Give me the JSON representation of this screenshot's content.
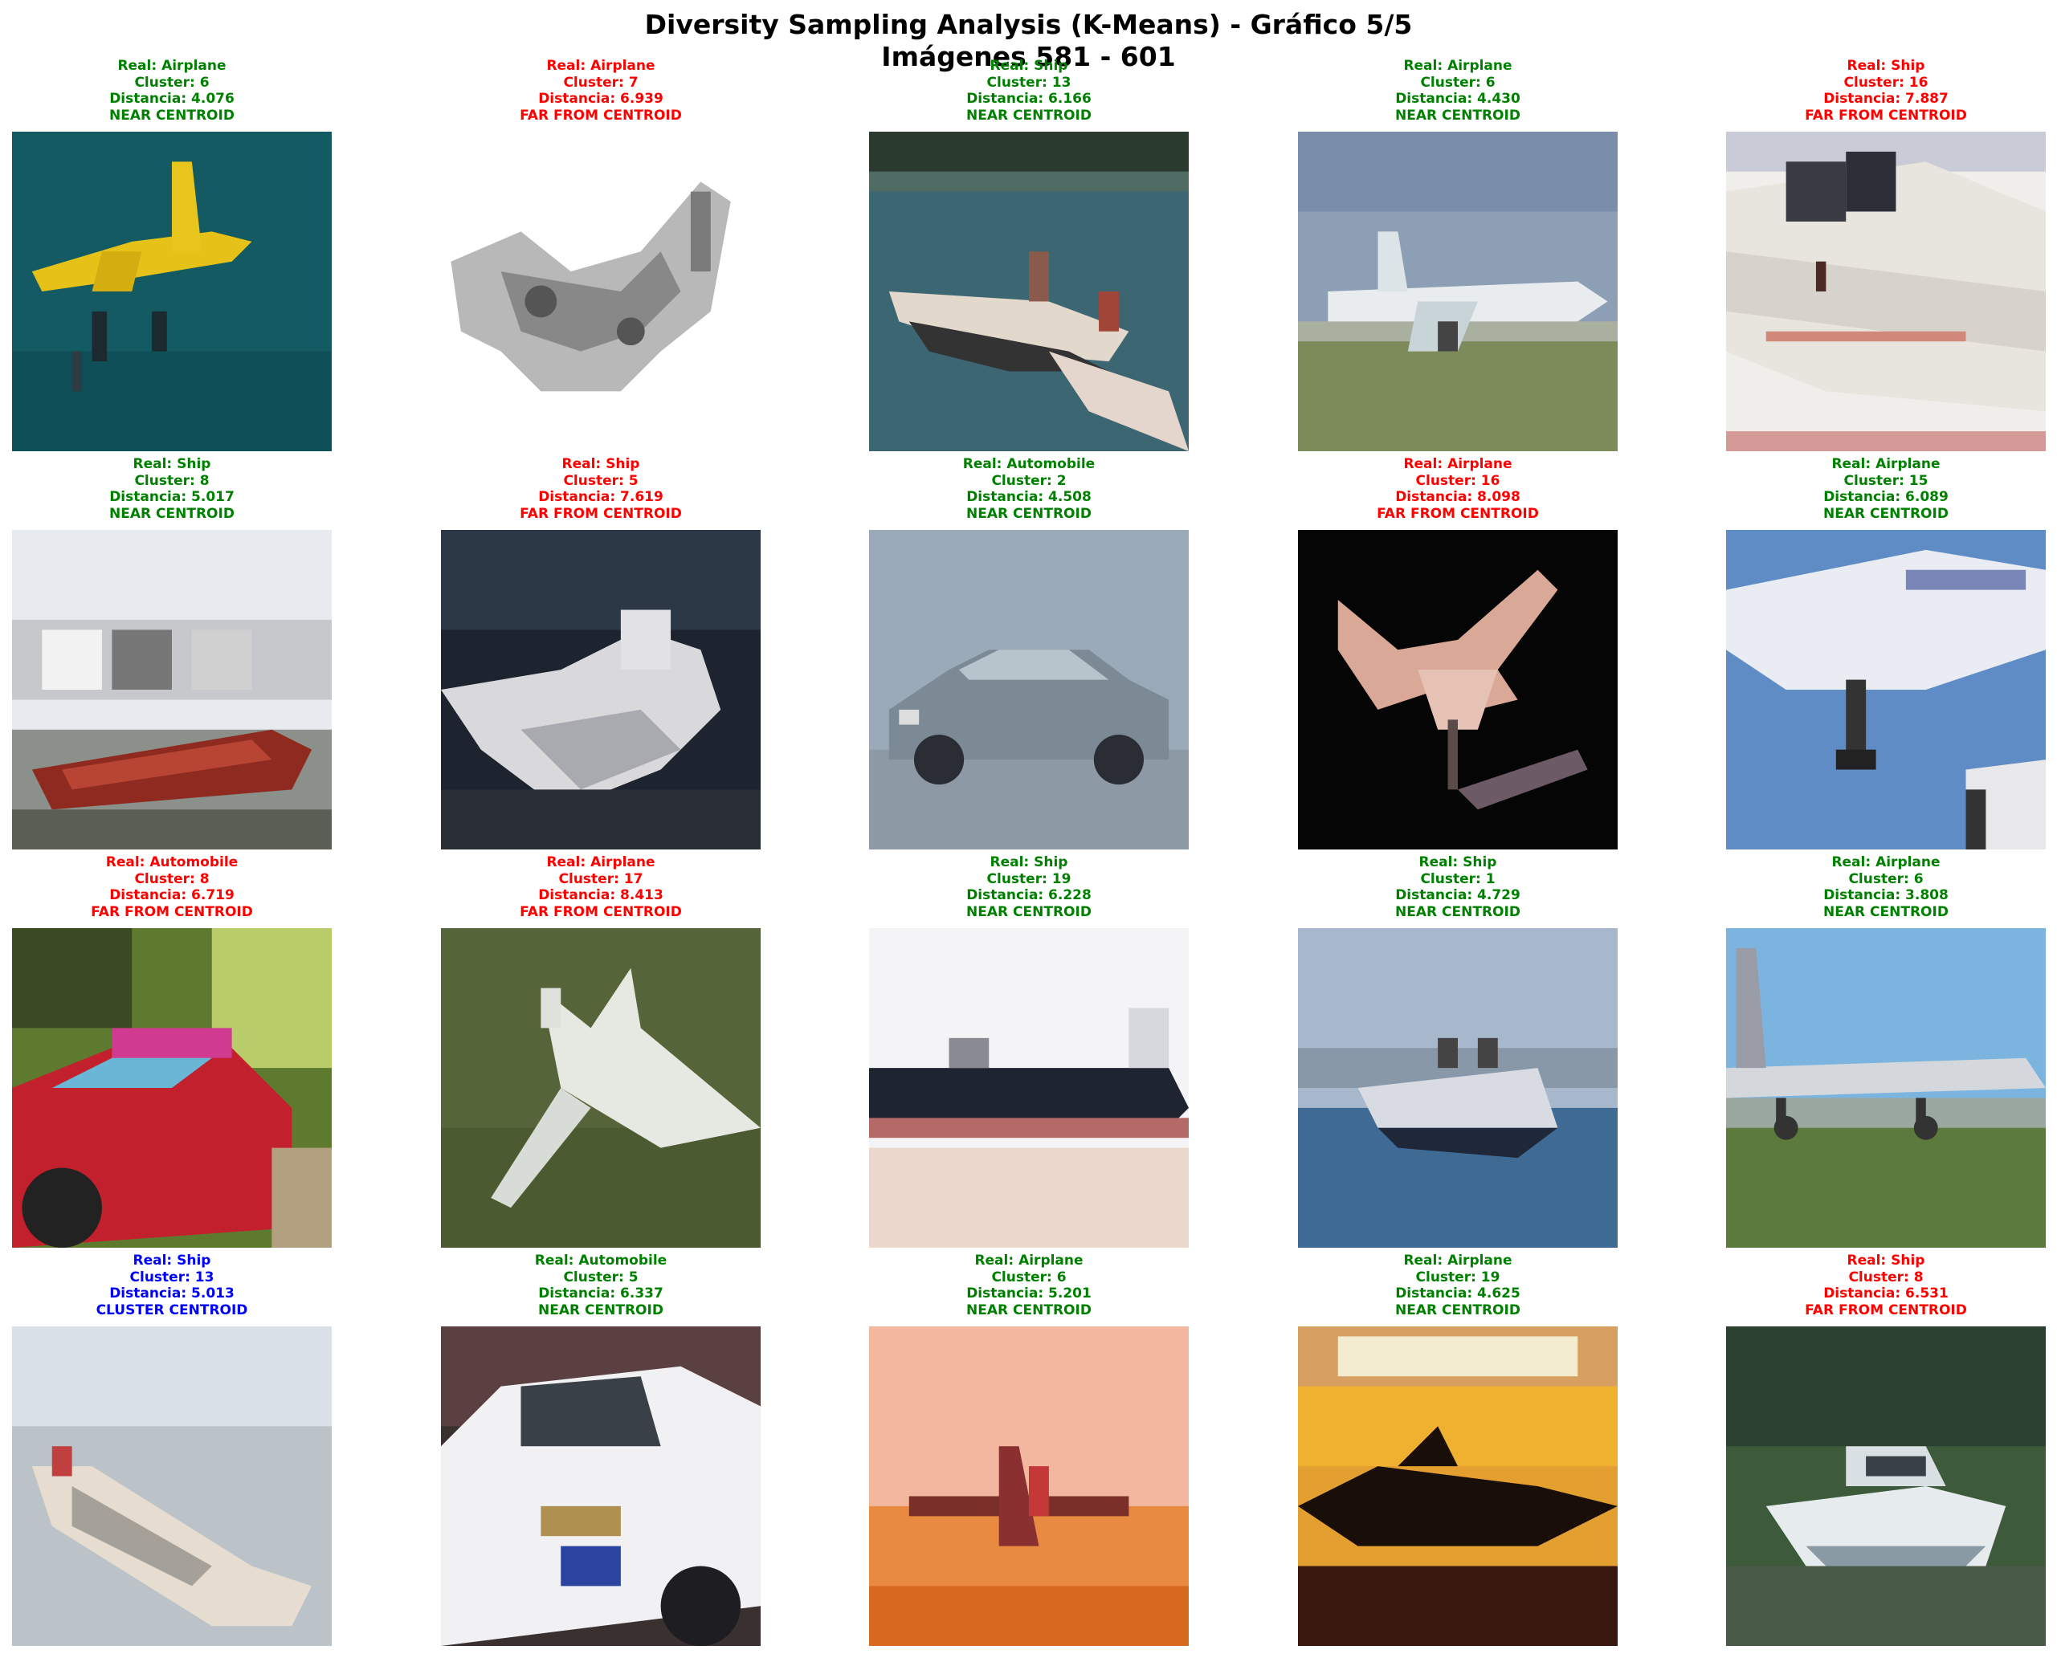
{
  "figure": {
    "title_line1": "Diversity Sampling Analysis (K-Means) - Gráfico 5/5",
    "title_line2": "Imágenes 581 - 601"
  },
  "colors": {
    "near": "#008000",
    "far": "#ff0000",
    "centroid": "#0000ff"
  },
  "tiles": [
    {
      "real": "Real: Airplane",
      "cluster": "Cluster: 6",
      "distance": "Distancia: 4.076",
      "status": "NEAR CENTROID",
      "kind": "near",
      "scene": "yellow plane on teal"
    },
    {
      "real": "Real: Airplane",
      "cluster": "Cluster: 7",
      "distance": "Distancia: 6.939",
      "status": "FAR FROM CENTROID",
      "kind": "far",
      "scene": "grayscale aircraft"
    },
    {
      "real": "Real: Ship",
      "cluster": "Cluster: 13",
      "distance": "Distancia: 6.166",
      "status": "NEAR CENTROID",
      "kind": "near",
      "scene": "speedboat on water"
    },
    {
      "real": "Real: Airplane",
      "cluster": "Cluster: 6",
      "distance": "Distancia: 4.430",
      "status": "NEAR CENTROID",
      "kind": "near",
      "scene": "white plane on runway"
    },
    {
      "real": "Real: Ship",
      "cluster": "Cluster: 16",
      "distance": "Distancia: 7.887",
      "status": "FAR FROM CENTROID",
      "kind": "far",
      "scene": "white boat closeup"
    },
    {
      "real": "Real: Ship",
      "cluster": "Cluster: 8",
      "distance": "Distancia: 5.017",
      "status": "NEAR CENTROID",
      "kind": "near",
      "scene": "red boat at dock"
    },
    {
      "real": "Real: Ship",
      "cluster": "Cluster: 5",
      "distance": "Distancia: 7.619",
      "status": "FAR FROM CENTROID",
      "kind": "far",
      "scene": "white boat dark water"
    },
    {
      "real": "Real: Automobile",
      "cluster": "Cluster: 2",
      "distance": "Distancia: 4.508",
      "status": "NEAR CENTROID",
      "kind": "near",
      "scene": "silver car"
    },
    {
      "real": "Real: Airplane",
      "cluster": "Cluster: 16",
      "distance": "Distancia: 8.098",
      "status": "FAR FROM CENTROID",
      "kind": "far",
      "scene": "pink plane on black"
    },
    {
      "real": "Real: Airplane",
      "cluster": "Cluster: 15",
      "distance": "Distancia: 6.089",
      "status": "NEAR CENTROID",
      "kind": "near",
      "scene": "airliner blue sky"
    },
    {
      "real": "Real: Automobile",
      "cluster": "Cluster: 8",
      "distance": "Distancia: 6.719",
      "status": "FAR FROM CENTROID",
      "kind": "far",
      "scene": "red car greenery"
    },
    {
      "real": "Real: Airplane",
      "cluster": "Cluster: 17",
      "distance": "Distancia: 8.413",
      "status": "FAR FROM CENTROID",
      "kind": "far",
      "scene": "white jet over grass"
    },
    {
      "real": "Real: Ship",
      "cluster": "Cluster: 19",
      "distance": "Distancia: 6.228",
      "status": "NEAR CENTROID",
      "kind": "near",
      "scene": "dark ship pale sky"
    },
    {
      "real": "Real: Ship",
      "cluster": "Cluster: 1",
      "distance": "Distancia: 4.729",
      "status": "NEAR CENTROID",
      "kind": "near",
      "scene": "cruise ship blue water"
    },
    {
      "real": "Real: Airplane",
      "cluster": "Cluster: 6",
      "distance": "Distancia: 3.808",
      "status": "NEAR CENTROID",
      "kind": "near",
      "scene": "plane on airfield"
    },
    {
      "real": "Real: Ship",
      "cluster": "Cluster: 13",
      "distance": "Distancia: 5.013",
      "status": "CLUSTER CENTROID",
      "kind": "centroid",
      "scene": "boat in haze"
    },
    {
      "real": "Real: Automobile",
      "cluster": "Cluster: 5",
      "distance": "Distancia: 6.337",
      "status": "NEAR CENTROID",
      "kind": "near",
      "scene": "white car"
    },
    {
      "real": "Real: Airplane",
      "cluster": "Cluster: 6",
      "distance": "Distancia: 5.201",
      "status": "NEAR CENTROID",
      "kind": "near",
      "scene": "plane on orange sand"
    },
    {
      "real": "Real: Airplane",
      "cluster": "Cluster: 19",
      "distance": "Distancia: 4.625",
      "status": "NEAR CENTROID",
      "kind": "near",
      "scene": "plane silhouette sunset"
    },
    {
      "real": "Real: Ship",
      "cluster": "Cluster: 8",
      "distance": "Distancia: 6.531",
      "status": "FAR FROM CENTROID",
      "kind": "far",
      "scene": "white boat green trees"
    }
  ]
}
